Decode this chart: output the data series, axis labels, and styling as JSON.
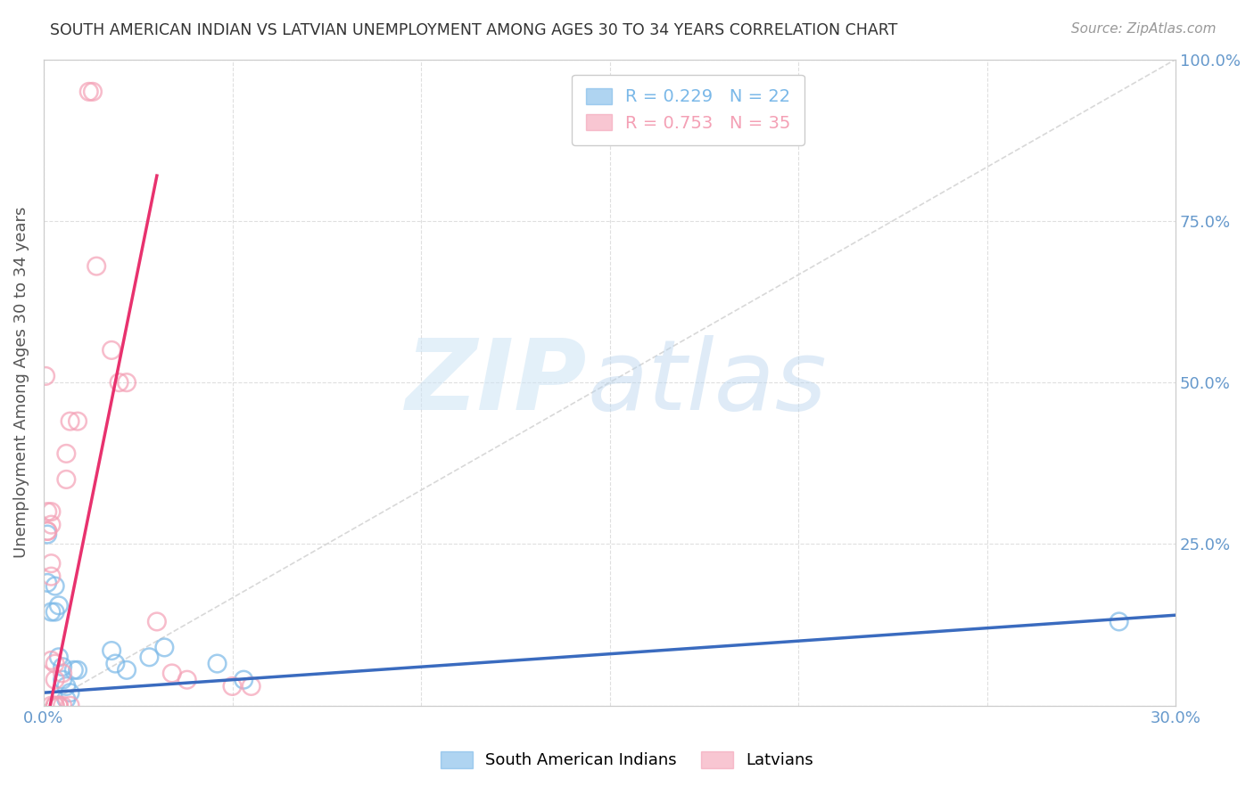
{
  "title": "SOUTH AMERICAN INDIAN VS LATVIAN UNEMPLOYMENT AMONG AGES 30 TO 34 YEARS CORRELATION CHART",
  "source": "Source: ZipAtlas.com",
  "ylabel": "Unemployment Among Ages 30 to 34 years",
  "xlim": [
    0.0,
    0.3
  ],
  "ylim": [
    0.0,
    1.0
  ],
  "xticks": [
    0.0,
    0.05,
    0.1,
    0.15,
    0.2,
    0.25,
    0.3
  ],
  "yticks": [
    0.0,
    0.25,
    0.5,
    0.75,
    1.0
  ],
  "xtick_labels": [
    "0.0%",
    "",
    "",
    "",
    "",
    "",
    "30.0%"
  ],
  "ytick_labels_right": [
    "",
    "25.0%",
    "50.0%",
    "75.0%",
    "100.0%"
  ],
  "legend_r1": "R = 0.229   N = 22",
  "legend_r2": "R = 0.753   N = 35",
  "blue_points": [
    [
      0.001,
      0.265
    ],
    [
      0.001,
      0.19
    ],
    [
      0.002,
      0.145
    ],
    [
      0.003,
      0.185
    ],
    [
      0.003,
      0.145
    ],
    [
      0.004,
      0.155
    ],
    [
      0.004,
      0.075
    ],
    [
      0.005,
      0.06
    ],
    [
      0.005,
      0.04
    ],
    [
      0.006,
      0.03
    ],
    [
      0.006,
      0.01
    ],
    [
      0.007,
      0.02
    ],
    [
      0.008,
      0.055
    ],
    [
      0.009,
      0.055
    ],
    [
      0.018,
      0.085
    ],
    [
      0.019,
      0.065
    ],
    [
      0.022,
      0.055
    ],
    [
      0.028,
      0.075
    ],
    [
      0.032,
      0.09
    ],
    [
      0.046,
      0.065
    ],
    [
      0.053,
      0.04
    ],
    [
      0.285,
      0.13
    ]
  ],
  "pink_points": [
    [
      0.0005,
      0.51
    ],
    [
      0.001,
      0.3
    ],
    [
      0.001,
      0.27
    ],
    [
      0.001,
      0.27
    ],
    [
      0.002,
      0.3
    ],
    [
      0.002,
      0.28
    ],
    [
      0.002,
      0.22
    ],
    [
      0.002,
      0.2
    ],
    [
      0.002,
      0.07
    ],
    [
      0.002,
      0.0
    ],
    [
      0.003,
      0.0
    ],
    [
      0.003,
      0.04
    ],
    [
      0.003,
      0.065
    ],
    [
      0.003,
      0.0
    ],
    [
      0.004,
      0.0
    ],
    [
      0.004,
      0.0
    ],
    [
      0.004,
      0.0
    ],
    [
      0.005,
      0.05
    ],
    [
      0.005,
      0.0
    ],
    [
      0.006,
      0.39
    ],
    [
      0.006,
      0.35
    ],
    [
      0.007,
      0.44
    ],
    [
      0.007,
      0.0
    ],
    [
      0.009,
      0.44
    ],
    [
      0.012,
      0.95
    ],
    [
      0.013,
      0.95
    ],
    [
      0.014,
      0.68
    ],
    [
      0.018,
      0.55
    ],
    [
      0.02,
      0.5
    ],
    [
      0.022,
      0.5
    ],
    [
      0.03,
      0.13
    ],
    [
      0.034,
      0.05
    ],
    [
      0.038,
      0.04
    ],
    [
      0.05,
      0.03
    ],
    [
      0.055,
      0.03
    ]
  ],
  "blue_line": {
    "x": [
      0.0,
      0.3
    ],
    "y": [
      0.02,
      0.14
    ]
  },
  "pink_line": {
    "x": [
      0.0,
      0.03
    ],
    "y": [
      -0.05,
      0.82
    ]
  },
  "ref_line": {
    "x": [
      0.0,
      0.3
    ],
    "y": [
      0.0,
      1.0
    ]
  },
  "blue_color": "#7ab8e8",
  "pink_color": "#f4a0b5",
  "blue_line_color": "#3a6bbf",
  "pink_line_color": "#e8326e",
  "ref_line_color": "#c8c8c8",
  "bg_color": "#ffffff",
  "grid_color": "#d8d8d8",
  "title_color": "#333333",
  "axis_label_color": "#555555",
  "tick_color": "#6699cc",
  "source_color": "#999999"
}
